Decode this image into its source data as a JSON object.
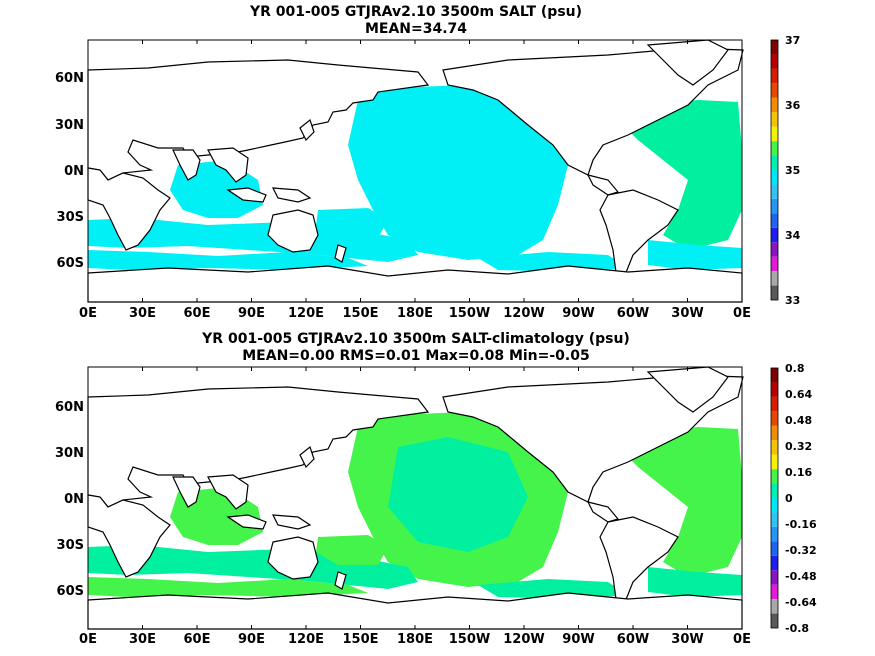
{
  "panels": [
    {
      "title": "YR 001-005 GTJRAv2.10 3500m SALT (psu)",
      "subtitle": "MEAN=34.74",
      "chart_data": {
        "type": "heatmap",
        "field": "SALT",
        "units": "psu",
        "projection": "cylindrical equidistant, 0E-360E",
        "xticks": [
          "0E",
          "30E",
          "60E",
          "90E",
          "120E",
          "150E",
          "180E",
          "150W",
          "120W",
          "90W",
          "60W",
          "30W",
          "0E"
        ],
        "yticks": [
          "60N",
          "30N",
          "0N",
          "30S",
          "60S"
        ],
        "colorbar": {
          "labels": [
            "33",
            "34",
            "35",
            "36",
            "37"
          ],
          "min": 33,
          "max": 37,
          "colors": [
            "#595959",
            "#a8a8a8",
            "#e31bd8",
            "#8b14c2",
            "#1e1ef0",
            "#1e64f0",
            "#2496f5",
            "#30c3f3",
            "#00e6f5",
            "#00f0b4",
            "#44f44b",
            "#f3f305",
            "#f5c400",
            "#f28c00",
            "#e84700",
            "#d81d00",
            "#b60000",
            "#7f0000"
          ]
        },
        "fill_colors": {
          "dominant": "#00f0f5",
          "secondary": "#00f0a0"
        },
        "stats": {
          "mean": 34.74
        }
      }
    },
    {
      "title": "YR 001-005 GTJRAv2.10 3500m SALT-climatology (psu)",
      "subtitle": "MEAN=0.00   RMS=0.01   Max=0.08   Min=-0.05",
      "chart_data": {
        "type": "heatmap",
        "field": "SALT-climatology",
        "units": "psu",
        "projection": "cylindrical equidistant, 0E-360E",
        "xticks": [
          "0E",
          "30E",
          "60E",
          "90E",
          "120E",
          "150E",
          "180E",
          "150W",
          "120W",
          "90W",
          "60W",
          "30W",
          "0E"
        ],
        "yticks": [
          "60N",
          "30N",
          "0N",
          "30S",
          "60S"
        ],
        "colorbar": {
          "labels": [
            "0.8",
            "0.64",
            "0.48",
            "0.32",
            "0.16",
            "0",
            "-0.16",
            "-0.32",
            "-0.48",
            "-0.64",
            "-0.8"
          ],
          "min": -0.8,
          "max": 0.8,
          "colors": [
            "#595959",
            "#a8a8a8",
            "#e31bd8",
            "#8b14c2",
            "#1e1ef0",
            "#1e64f0",
            "#2496f5",
            "#30c3f3",
            "#00e6f5",
            "#00f0b4",
            "#44f44b",
            "#f3f305",
            "#f5c400",
            "#f28c00",
            "#e84700",
            "#d81d00",
            "#b60000",
            "#7f0000"
          ]
        },
        "fill_colors": {
          "dominant": "#00f0a0",
          "secondary": "#44f44b"
        },
        "stats": {
          "mean": 0.0,
          "rms": 0.01,
          "max": 0.08,
          "min": -0.05
        }
      }
    }
  ]
}
